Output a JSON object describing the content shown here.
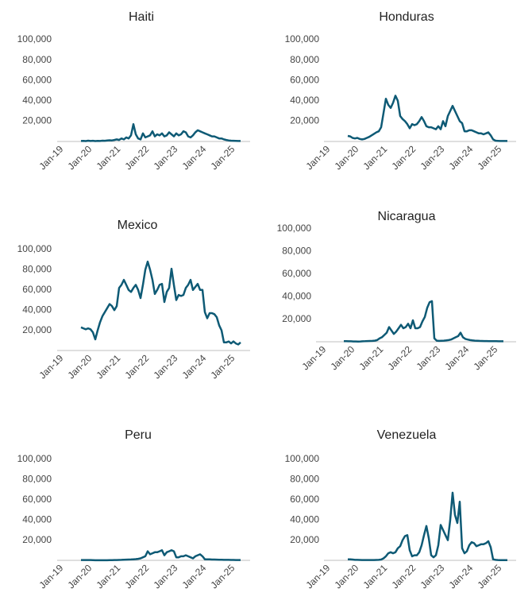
{
  "chart_data": [
    {
      "type": "line",
      "title": "Haiti",
      "color": "#0e5a75",
      "ylim": [
        0,
        100000
      ],
      "yticks": [
        {
          "value": 20000,
          "label": "20,000"
        },
        {
          "value": 40000,
          "label": "40,000"
        },
        {
          "value": 60000,
          "label": "60,000"
        },
        {
          "value": 80000,
          "label": "80,000"
        },
        {
          "value": 100000,
          "label": "100,000"
        }
      ],
      "xticks": [
        "Jan-19",
        "Jan-20",
        "Jan-21",
        "Jan-22",
        "Jan-23",
        "Jan-24",
        "Jan-25"
      ],
      "x": [
        "Sep-19",
        "Oct-19",
        "Nov-19",
        "Dec-19",
        "Jan-20",
        "Feb-20",
        "Mar-20",
        "Apr-20",
        "May-20",
        "Jun-20",
        "Jul-20",
        "Aug-20",
        "Sep-20",
        "Oct-20",
        "Nov-20",
        "Dec-20",
        "Jan-21",
        "Feb-21",
        "Mar-21",
        "Apr-21",
        "May-21",
        "Jun-21",
        "Jul-21",
        "Aug-21",
        "Sep-21",
        "Oct-21",
        "Nov-21",
        "Dec-21",
        "Jan-22",
        "Feb-22",
        "Mar-22",
        "Apr-22",
        "May-22",
        "Jun-22",
        "Jul-22",
        "Aug-22",
        "Sep-22",
        "Oct-22",
        "Nov-22",
        "Dec-22",
        "Jan-23",
        "Feb-23",
        "Mar-23",
        "Apr-23",
        "May-23",
        "Jun-23",
        "Jul-23",
        "Aug-23",
        "Sep-23",
        "Oct-23",
        "Nov-23",
        "Dec-23",
        "Jan-24",
        "Feb-24",
        "Mar-24",
        "Apr-24",
        "May-24",
        "Jun-24",
        "Jul-24",
        "Aug-24",
        "Sep-24",
        "Oct-24",
        "Nov-24",
        "Dec-24",
        "Jan-25",
        "Feb-25",
        "Mar-25",
        "Apr-25"
      ],
      "values": [
        500,
        600,
        400,
        800,
        500,
        700,
        400,
        600,
        500,
        800,
        700,
        900,
        1200,
        1000,
        1500,
        2000,
        1500,
        3000,
        2000,
        4000,
        3000,
        6000,
        17000,
        7000,
        3000,
        2000,
        8000,
        4000,
        5000,
        6000,
        10000,
        5000,
        7000,
        6000,
        8000,
        5000,
        6000,
        9000,
        7000,
        5000,
        8000,
        6000,
        7000,
        10000,
        9000,
        5000,
        4000,
        6000,
        9000,
        11000,
        10000,
        9000,
        8000,
        7000,
        6000,
        5000,
        5000,
        4000,
        3000,
        3000,
        2000,
        1500,
        1000,
        800,
        700,
        600,
        500,
        500
      ]
    },
    {
      "type": "line",
      "title": "Honduras",
      "color": "#0e5a75",
      "ylim": [
        0,
        100000
      ],
      "yticks": [
        {
          "value": 20000,
          "label": "20,000"
        },
        {
          "value": 40000,
          "label": "40,000"
        },
        {
          "value": 60000,
          "label": "60,000"
        },
        {
          "value": 80000,
          "label": "80,000"
        },
        {
          "value": 100000,
          "label": "100,000"
        }
      ],
      "xticks": [
        "Jan-19",
        "Jan-20",
        "Jan-21",
        "Jan-22",
        "Jan-23",
        "Jan-24",
        "Jan-25"
      ],
      "x": [
        "Sep-19",
        "Oct-19",
        "Nov-19",
        "Dec-19",
        "Jan-20",
        "Feb-20",
        "Mar-20",
        "Apr-20",
        "May-20",
        "Jun-20",
        "Jul-20",
        "Aug-20",
        "Sep-20",
        "Oct-20",
        "Nov-20",
        "Dec-20",
        "Jan-21",
        "Feb-21",
        "Mar-21",
        "Apr-21",
        "May-21",
        "Jun-21",
        "Jul-21",
        "Aug-21",
        "Sep-21",
        "Oct-21",
        "Nov-21",
        "Dec-21",
        "Jan-22",
        "Feb-22",
        "Mar-22",
        "Apr-22",
        "May-22",
        "Jun-22",
        "Jul-22",
        "Aug-22",
        "Sep-22",
        "Oct-22",
        "Nov-22",
        "Dec-22",
        "Jan-23",
        "Feb-23",
        "Mar-23",
        "Apr-23",
        "May-23",
        "Jun-23",
        "Jul-23",
        "Aug-23",
        "Sep-23",
        "Oct-23",
        "Nov-23",
        "Dec-23",
        "Jan-24",
        "Feb-24",
        "Mar-24",
        "Apr-24",
        "May-24",
        "Jun-24",
        "Jul-24",
        "Aug-24",
        "Sep-24",
        "Oct-24",
        "Nov-24",
        "Dec-24",
        "Jan-25",
        "Feb-25",
        "Mar-25",
        "Apr-25"
      ],
      "values": [
        5500,
        5000,
        3500,
        3000,
        3500,
        2500,
        2000,
        2500,
        3500,
        4500,
        6000,
        7500,
        9000,
        10000,
        14000,
        28000,
        42000,
        36000,
        33000,
        38000,
        45000,
        40000,
        25000,
        22000,
        20000,
        17000,
        13000,
        17000,
        16000,
        17000,
        20000,
        24000,
        20000,
        15000,
        14000,
        14000,
        13000,
        12000,
        15000,
        12000,
        20000,
        15000,
        25000,
        30000,
        35000,
        30000,
        25000,
        20000,
        18000,
        10000,
        10000,
        11000,
        11000,
        10000,
        9000,
        8000,
        8000,
        7000,
        8000,
        9000,
        6000,
        2000,
        800,
        600,
        500,
        500,
        500,
        500
      ]
    },
    {
      "type": "line",
      "title": "Mexico",
      "color": "#0e5a75",
      "ylim": [
        0,
        100000
      ],
      "yticks": [
        {
          "value": 20000,
          "label": "20,000"
        },
        {
          "value": 40000,
          "label": "40,000"
        },
        {
          "value": 60000,
          "label": "60,000"
        },
        {
          "value": 80000,
          "label": "80,000"
        },
        {
          "value": 100000,
          "label": "100,000"
        }
      ],
      "xticks": [
        "Jan-19",
        "Jan-20",
        "Jan-21",
        "Jan-22",
        "Jan-23",
        "Jan-24",
        "Jan-25"
      ],
      "x": [
        "Sep-19",
        "Oct-19",
        "Nov-19",
        "Dec-19",
        "Jan-20",
        "Feb-20",
        "Mar-20",
        "Apr-20",
        "May-20",
        "Jun-20",
        "Jul-20",
        "Aug-20",
        "Sep-20",
        "Oct-20",
        "Nov-20",
        "Dec-20",
        "Jan-21",
        "Feb-21",
        "Mar-21",
        "Apr-21",
        "May-21",
        "Jun-21",
        "Jul-21",
        "Aug-21",
        "Sep-21",
        "Oct-21",
        "Nov-21",
        "Dec-21",
        "Jan-22",
        "Feb-22",
        "Mar-22",
        "Apr-22",
        "May-22",
        "Jun-22",
        "Jul-22",
        "Aug-22",
        "Sep-22",
        "Oct-22",
        "Nov-22",
        "Dec-22",
        "Jan-23",
        "Feb-23",
        "Mar-23",
        "Apr-23",
        "May-23",
        "Jun-23",
        "Jul-23",
        "Aug-23",
        "Sep-23",
        "Oct-23",
        "Nov-23",
        "Dec-23",
        "Jan-24",
        "Feb-24",
        "Mar-24",
        "Apr-24",
        "May-24",
        "Jun-24",
        "Jul-24",
        "Aug-24",
        "Sep-24",
        "Oct-24",
        "Nov-24",
        "Dec-24",
        "Jan-25",
        "Feb-25",
        "Mar-25",
        "Apr-25"
      ],
      "values": [
        23000,
        22000,
        21000,
        22000,
        21000,
        18000,
        11000,
        20000,
        28000,
        34000,
        38000,
        42000,
        46000,
        44000,
        40000,
        44000,
        62000,
        65000,
        70000,
        65000,
        60000,
        58000,
        62000,
        65000,
        60000,
        52000,
        65000,
        80000,
        88000,
        80000,
        70000,
        56000,
        60000,
        65000,
        66000,
        48000,
        58000,
        62000,
        81000,
        65000,
        50000,
        55000,
        54000,
        55000,
        62000,
        65000,
        70000,
        60000,
        63000,
        66000,
        60000,
        60000,
        38000,
        32000,
        37000,
        37000,
        36000,
        33000,
        25000,
        20000,
        8000,
        8000,
        9000,
        7000,
        9000,
        7000,
        6000,
        8000
      ]
    },
    {
      "type": "line",
      "title": "Nicaragua",
      "color": "#0e5a75",
      "ylim": [
        0,
        100000
      ],
      "yticks": [
        {
          "value": 20000,
          "label": "20,000"
        },
        {
          "value": 40000,
          "label": "40,000"
        },
        {
          "value": 60000,
          "label": "60,000"
        },
        {
          "value": 80000,
          "label": "80,000"
        },
        {
          "value": 100000,
          "label": "100,000"
        }
      ],
      "xticks": [
        "Jan-19",
        "Jan-20",
        "Jan-21",
        "Jan-22",
        "Jan-23",
        "Jan-24",
        "Jan-25"
      ],
      "x": [
        "Sep-19",
        "Oct-19",
        "Nov-19",
        "Dec-19",
        "Jan-20",
        "Feb-20",
        "Mar-20",
        "Apr-20",
        "May-20",
        "Jun-20",
        "Jul-20",
        "Aug-20",
        "Sep-20",
        "Oct-20",
        "Nov-20",
        "Dec-20",
        "Jan-21",
        "Feb-21",
        "Mar-21",
        "Apr-21",
        "May-21",
        "Jun-21",
        "Jul-21",
        "Aug-21",
        "Sep-21",
        "Oct-21",
        "Nov-21",
        "Dec-21",
        "Jan-22",
        "Feb-22",
        "Mar-22",
        "Apr-22",
        "May-22",
        "Jun-22",
        "Jul-22",
        "Aug-22",
        "Sep-22",
        "Oct-22",
        "Nov-22",
        "Dec-22",
        "Jan-23",
        "Feb-23",
        "Mar-23",
        "Apr-23",
        "May-23",
        "Jun-23",
        "Jul-23",
        "Aug-23",
        "Sep-23",
        "Oct-23",
        "Nov-23",
        "Dec-23",
        "Jan-24",
        "Feb-24",
        "Mar-24",
        "Apr-24",
        "May-24",
        "Jun-24",
        "Jul-24",
        "Aug-24",
        "Sep-24",
        "Oct-24",
        "Nov-24",
        "Dec-24",
        "Jan-25",
        "Feb-25",
        "Mar-25",
        "Apr-25"
      ],
      "values": [
        500,
        500,
        400,
        400,
        300,
        300,
        200,
        300,
        400,
        500,
        600,
        700,
        800,
        1000,
        1500,
        3000,
        4000,
        6000,
        8000,
        13000,
        10000,
        7000,
        9000,
        12000,
        15000,
        12000,
        13000,
        16000,
        12000,
        19000,
        12000,
        12000,
        13000,
        18000,
        22000,
        30000,
        35000,
        36000,
        3000,
        1000,
        800,
        900,
        1000,
        1200,
        1500,
        2000,
        3000,
        4000,
        5000,
        8000,
        4000,
        2500,
        2000,
        1500,
        1200,
        1000,
        900,
        800,
        700,
        600,
        600,
        500,
        500,
        500,
        500,
        400,
        400,
        400
      ]
    },
    {
      "type": "line",
      "title": "Peru",
      "color": "#0e5a75",
      "ylim": [
        0,
        100000
      ],
      "yticks": [
        {
          "value": 20000,
          "label": "20,000"
        },
        {
          "value": 40000,
          "label": "40,000"
        },
        {
          "value": 60000,
          "label": "60,000"
        },
        {
          "value": 80000,
          "label": "80,000"
        },
        {
          "value": 100000,
          "label": "100,000"
        }
      ],
      "xticks": [
        "Jan-19",
        "Jan-20",
        "Jan-21",
        "Jan-22",
        "Jan-23",
        "Jan-24",
        "Jan-25"
      ],
      "x": [
        "Sep-19",
        "Oct-19",
        "Nov-19",
        "Dec-19",
        "Jan-20",
        "Feb-20",
        "Mar-20",
        "Apr-20",
        "May-20",
        "Jun-20",
        "Jul-20",
        "Aug-20",
        "Sep-20",
        "Oct-20",
        "Nov-20",
        "Dec-20",
        "Jan-21",
        "Feb-21",
        "Mar-21",
        "Apr-21",
        "May-21",
        "Jun-21",
        "Jul-21",
        "Aug-21",
        "Sep-21",
        "Oct-21",
        "Nov-21",
        "Dec-21",
        "Jan-22",
        "Feb-22",
        "Mar-22",
        "Apr-22",
        "May-22",
        "Jun-22",
        "Jul-22",
        "Aug-22",
        "Sep-22",
        "Oct-22",
        "Nov-22",
        "Dec-22",
        "Jan-23",
        "Feb-23",
        "Mar-23",
        "Apr-23",
        "May-23",
        "Jun-23",
        "Jul-23",
        "Aug-23",
        "Sep-23",
        "Oct-23",
        "Nov-23",
        "Dec-23",
        "Jan-24",
        "Feb-24",
        "Mar-24",
        "Apr-24",
        "May-24",
        "Jun-24",
        "Jul-24",
        "Aug-24",
        "Sep-24",
        "Oct-24",
        "Nov-24",
        "Dec-24",
        "Jan-25",
        "Feb-25",
        "Mar-25",
        "Apr-25"
      ],
      "values": [
        300,
        300,
        300,
        300,
        300,
        200,
        100,
        100,
        100,
        100,
        100,
        100,
        200,
        200,
        300,
        300,
        400,
        500,
        600,
        700,
        800,
        900,
        1000,
        1200,
        1500,
        2000,
        3000,
        4000,
        9000,
        6000,
        7000,
        8000,
        8000,
        9000,
        10000,
        5000,
        8000,
        9000,
        10000,
        9000,
        3000,
        3000,
        4000,
        4000,
        5000,
        4000,
        3000,
        2000,
        4000,
        5000,
        6000,
        4000,
        1000,
        1000,
        1000,
        800,
        800,
        700,
        600,
        600,
        500,
        500,
        500,
        400,
        400,
        300,
        300,
        300
      ]
    },
    {
      "type": "line",
      "title": "Venezuela",
      "color": "#0e5a75",
      "ylim": [
        0,
        100000
      ],
      "yticks": [
        {
          "value": 20000,
          "label": "20,000"
        },
        {
          "value": 40000,
          "label": "40,000"
        },
        {
          "value": 60000,
          "label": "60,000"
        },
        {
          "value": 80000,
          "label": "80,000"
        },
        {
          "value": 100000,
          "label": "100,000"
        }
      ],
      "xticks": [
        "Jan-19",
        "Jan-20",
        "Jan-21",
        "Jan-22",
        "Jan-23",
        "Jan-24",
        "Jan-25"
      ],
      "x": [
        "Sep-19",
        "Oct-19",
        "Nov-19",
        "Dec-19",
        "Jan-20",
        "Feb-20",
        "Mar-20",
        "Apr-20",
        "May-20",
        "Jun-20",
        "Jul-20",
        "Aug-20",
        "Sep-20",
        "Oct-20",
        "Nov-20",
        "Dec-20",
        "Jan-21",
        "Feb-21",
        "Mar-21",
        "Apr-21",
        "May-21",
        "Jun-21",
        "Jul-21",
        "Aug-21",
        "Sep-21",
        "Oct-21",
        "Nov-21",
        "Dec-21",
        "Jan-22",
        "Feb-22",
        "Mar-22",
        "Apr-22",
        "May-22",
        "Jun-22",
        "Jul-22",
        "Aug-22",
        "Sep-22",
        "Oct-22",
        "Nov-22",
        "Dec-22",
        "Jan-23",
        "Feb-23",
        "Mar-23",
        "Apr-23",
        "May-23",
        "Jun-23",
        "Jul-23",
        "Aug-23",
        "Sep-23",
        "Oct-23",
        "Nov-23",
        "Dec-23",
        "Jan-24",
        "Feb-24",
        "Mar-24",
        "Apr-24",
        "May-24",
        "Jun-24",
        "Jul-24",
        "Aug-24",
        "Sep-24",
        "Oct-24",
        "Nov-24",
        "Dec-24",
        "Jan-25",
        "Feb-25",
        "Mar-25",
        "Apr-25"
      ],
      "values": [
        1000,
        1000,
        800,
        500,
        500,
        400,
        300,
        300,
        300,
        300,
        300,
        300,
        400,
        500,
        800,
        2000,
        4000,
        7000,
        8000,
        7000,
        8000,
        12000,
        14000,
        20000,
        24000,
        25000,
        10000,
        4000,
        5000,
        5000,
        8000,
        15000,
        25000,
        34000,
        22000,
        5000,
        3000,
        5000,
        15000,
        35000,
        30000,
        25000,
        20000,
        40000,
        67000,
        45000,
        37000,
        58000,
        12000,
        7000,
        9000,
        15000,
        18000,
        17000,
        14000,
        15000,
        16000,
        16000,
        17000,
        19000,
        13000,
        1000,
        500,
        300,
        200,
        200,
        200,
        200
      ]
    }
  ]
}
